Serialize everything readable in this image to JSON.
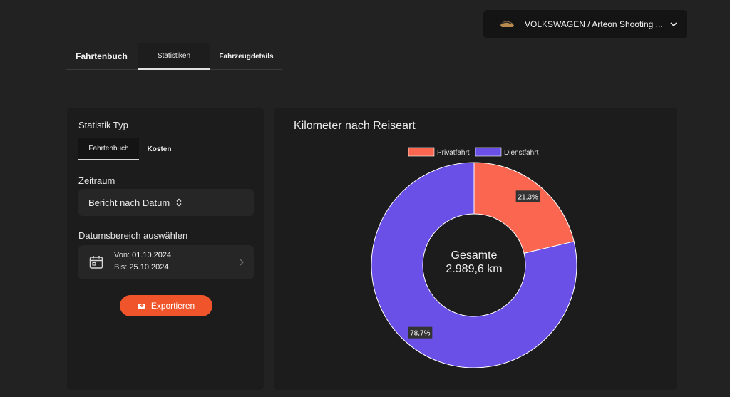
{
  "vehicle": {
    "name": "VOLKSWAGEN / Arteon Shooting ..."
  },
  "main_tabs": [
    "Fahrtenbuch",
    "Statistiken",
    "Fahrzeugdetails"
  ],
  "left_panel": {
    "statistik_label": "Statistik Typ",
    "sub_tabs": [
      "Fahrtenbuch",
      "Kosten"
    ],
    "zeitraum_label": "Zeitraum",
    "report_select": "Bericht nach Datum",
    "datumsbereich_label": "Datumsbereich auswählen",
    "from_label": "Von:",
    "from_value": "01.10.2024",
    "to_label": "Bis:",
    "to_value": "25.10.2024",
    "export_label": "Exportieren"
  },
  "colors": {
    "accent": "#f0542b",
    "privat": "#ff6b52",
    "dienst": "#6b52e8"
  },
  "chart_data": {
    "type": "pie",
    "title": "Kilometer nach Reiseart",
    "legend_placement": "top",
    "labels": [
      "Privatfahrt",
      "Dienstfahrt"
    ],
    "values": [
      21.3,
      78.7
    ],
    "value_labels": [
      "21,3%",
      "78,7%"
    ],
    "colors": [
      "#fa6650",
      "#6a50e6"
    ],
    "center_line1": "Gesamte",
    "center_line2": "2.989,6 km"
  }
}
